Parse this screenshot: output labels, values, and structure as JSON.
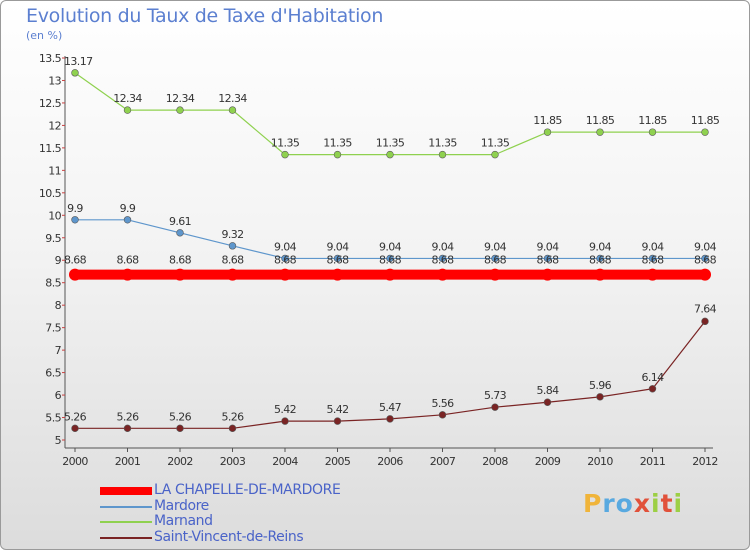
{
  "title": "Evolution du Taux de Taxe d'Habitation",
  "unit": "(en %)",
  "brand": {
    "text": "Proxiti",
    "colors": [
      "#f0b43a",
      "#58a9e0",
      "#9ccf45",
      "#e1513a"
    ]
  },
  "chart_data": {
    "type": "line",
    "x": [
      2000,
      2001,
      2002,
      2003,
      2004,
      2005,
      2006,
      2007,
      2008,
      2009,
      2010,
      2011,
      2012
    ],
    "ylim": [
      5,
      13.5
    ],
    "yticks": [
      5,
      5.5,
      6,
      6.5,
      7,
      7.5,
      8,
      8.5,
      9,
      9.5,
      10,
      10.5,
      11,
      11.5,
      12,
      12.5,
      13,
      13.5
    ],
    "grid": false,
    "legend_position": "bottom-left",
    "series": [
      {
        "name": "LA CHAPELLE-DE-MARDORE",
        "color": "#ff0000",
        "values": [
          8.68,
          8.68,
          8.68,
          8.68,
          8.68,
          8.68,
          8.68,
          8.68,
          8.68,
          8.68,
          8.68,
          8.68,
          8.68
        ],
        "labels": [
          "8.68",
          "8.68",
          "8.68",
          "8.68",
          "8.68",
          "8.68",
          "8.68",
          "8.68",
          "8.68",
          "8.68",
          "8.68",
          "8.68",
          "8.68"
        ]
      },
      {
        "name": "Mardore",
        "color": "#5e96cc",
        "values": [
          9.9,
          9.9,
          9.61,
          9.32,
          9.04,
          9.04,
          9.04,
          9.04,
          9.04,
          9.04,
          9.04,
          9.04,
          9.04
        ],
        "labels": [
          "9.9",
          "9.9",
          "9.61",
          "9.32",
          "9.04",
          "9.04",
          "9.04",
          "9.04",
          "9.04",
          "9.04",
          "9.04",
          "9.04",
          "9.04"
        ]
      },
      {
        "name": "Marnand",
        "color": "#8fd14f",
        "values": [
          13.17,
          12.34,
          12.34,
          12.34,
          11.35,
          11.35,
          11.35,
          11.35,
          11.35,
          11.85,
          11.85,
          11.85,
          11.85
        ],
        "labels": [
          "13.17",
          "12.34",
          "12.34",
          "12.34",
          "11.35",
          "11.35",
          "11.35",
          "11.35",
          "11.35",
          "11.85",
          "11.85",
          "11.85",
          "11.85"
        ]
      },
      {
        "name": "Saint-Vincent-de-Reins",
        "color": "#7a2424",
        "values": [
          5.26,
          5.26,
          5.26,
          5.26,
          5.42,
          5.42,
          5.47,
          5.56,
          5.73,
          5.84,
          5.96,
          6.14,
          7.64
        ],
        "labels": [
          "5.26",
          "5.26",
          "5.26",
          "5.26",
          "5.42",
          "5.42",
          "5.47",
          "5.56",
          "5.73",
          "5.84",
          "5.96",
          "6.14",
          "7.64"
        ]
      }
    ]
  }
}
